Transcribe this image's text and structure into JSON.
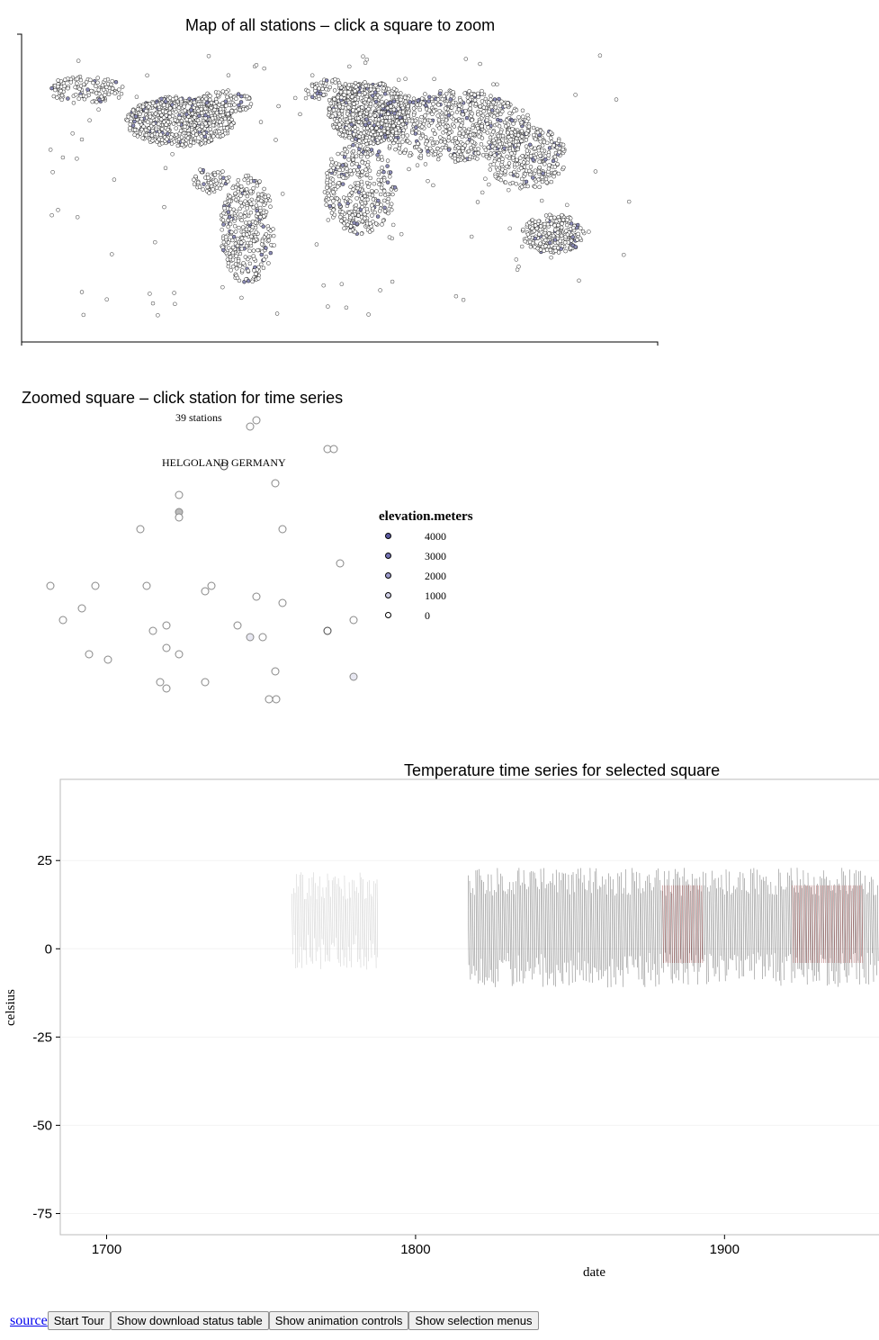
{
  "map": {
    "title": "Map of all stations – click a square to zoom"
  },
  "zoom": {
    "title": "Zoomed square – click station for time series",
    "count_label": "39 stations",
    "selected_station": "HELGOLAND GERMANY",
    "legend": {
      "title": "elevation.meters",
      "items": [
        {
          "label": "4000",
          "color": "#5b5aa0"
        },
        {
          "label": "3000",
          "color": "#7574b5"
        },
        {
          "label": "2000",
          "color": "#9c9bcc"
        },
        {
          "label": "1000",
          "color": "#cfcfe6"
        },
        {
          "label": "0",
          "color": "#ffffff"
        }
      ]
    }
  },
  "timeseries": {
    "title": "Temperature time series for selected square",
    "xlabel": "date",
    "ylabel": "celsius"
  },
  "chart_data": {
    "type": "line",
    "title": "Temperature time series for selected square",
    "xlabel": "date",
    "ylabel": "celsius",
    "xlim": [
      1685,
      1950
    ],
    "ylim": [
      -81,
      48
    ],
    "x_ticks": [
      "1700",
      "1800",
      "1900"
    ],
    "y_ticks": [
      "25",
      "0",
      "-25",
      "-50",
      "-75"
    ],
    "segments": [
      {
        "start": 1760,
        "end": 1788,
        "min": -6,
        "max": 22
      },
      {
        "start": 1817,
        "end": 1950,
        "min": -11,
        "max": 23
      }
    ],
    "highlight_color": "#8b1a1a",
    "line_color": "#333333"
  },
  "footer": {
    "source_link": "source",
    "buttons": [
      "Start Tour",
      "Show download status table",
      "Show animation controls",
      "Show selection menus"
    ]
  }
}
